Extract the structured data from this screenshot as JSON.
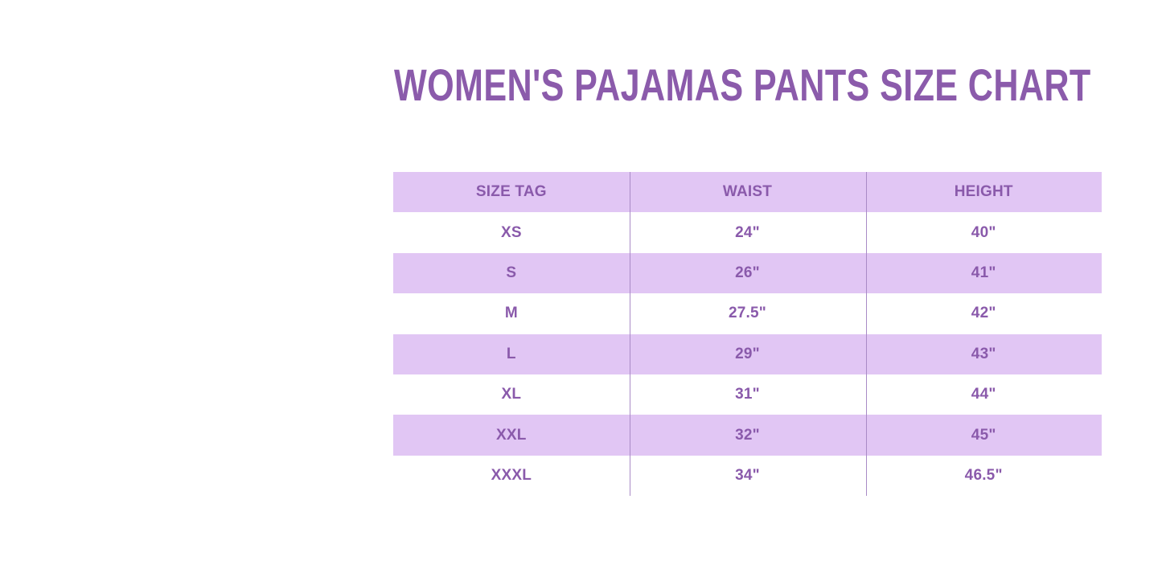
{
  "title": "WOMEN'S PAJAMAS PANTS SIZE CHART",
  "colors": {
    "text": "#8a5aab",
    "band": "#e1c6f4",
    "background": "#ffffff"
  },
  "table": {
    "headers": [
      "SIZE TAG",
      "WAIST",
      "HEIGHT"
    ],
    "rows": [
      [
        "XS",
        "24\"",
        "40\""
      ],
      [
        "S",
        "26\"",
        "41\""
      ],
      [
        "M",
        "27.5\"",
        "42\""
      ],
      [
        "L",
        "29\"",
        "43\""
      ],
      [
        "XL",
        "31\"",
        "44\""
      ],
      [
        "XXL",
        "32\"",
        "45\""
      ],
      [
        "XXXL",
        "34\"",
        "46.5\""
      ]
    ]
  }
}
